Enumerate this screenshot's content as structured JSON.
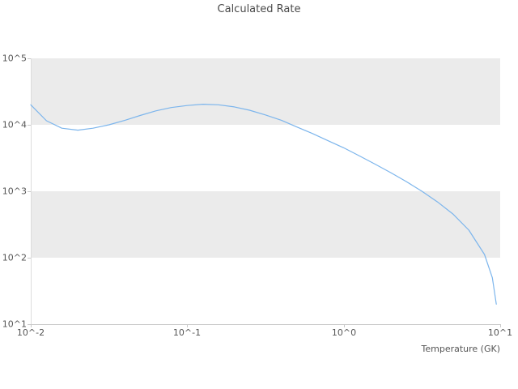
{
  "chart_data": {
    "type": "line",
    "title": "Calculated Rate",
    "xlabel": "Temperature (GK)",
    "ylabel": "",
    "x_scale": "log",
    "y_scale": "log",
    "xlim": [
      0.01,
      10
    ],
    "ylim": [
      10,
      100000
    ],
    "x_ticks": [
      "10^-2",
      "10^-1",
      "10^0",
      "10^1"
    ],
    "y_ticks": [
      "10^5",
      "10^4",
      "10^3",
      "10^2",
      "10^1"
    ],
    "legend_position": "none",
    "grid": "alternating horizontal decade bands",
    "band_color": "#ebebeb",
    "line_color": "#7cb5ec",
    "text_color": "#555555",
    "series": [
      {
        "name": "Calculated Rate",
        "points": [
          [
            0.01,
            20000
          ],
          [
            0.0126,
            11500
          ],
          [
            0.0158,
            8900
          ],
          [
            0.02,
            8300
          ],
          [
            0.025,
            8900
          ],
          [
            0.0316,
            10000
          ],
          [
            0.04,
            11700
          ],
          [
            0.05,
            13800
          ],
          [
            0.063,
            16200
          ],
          [
            0.079,
            18200
          ],
          [
            0.1,
            19500
          ],
          [
            0.126,
            20400
          ],
          [
            0.158,
            20000
          ],
          [
            0.2,
            18600
          ],
          [
            0.25,
            16600
          ],
          [
            0.316,
            14100
          ],
          [
            0.4,
            11700
          ],
          [
            0.5,
            9300
          ],
          [
            0.63,
            7400
          ],
          [
            0.79,
            5800
          ],
          [
            1.0,
            4500
          ],
          [
            1.26,
            3400
          ],
          [
            1.58,
            2570
          ],
          [
            2.0,
            1900
          ],
          [
            2.51,
            1400
          ],
          [
            3.16,
            1000
          ],
          [
            3.98,
            690
          ],
          [
            5.01,
            450
          ],
          [
            6.31,
            260
          ],
          [
            7.94,
            112
          ],
          [
            8.91,
            50
          ],
          [
            9.44,
            20
          ]
        ]
      }
    ]
  }
}
